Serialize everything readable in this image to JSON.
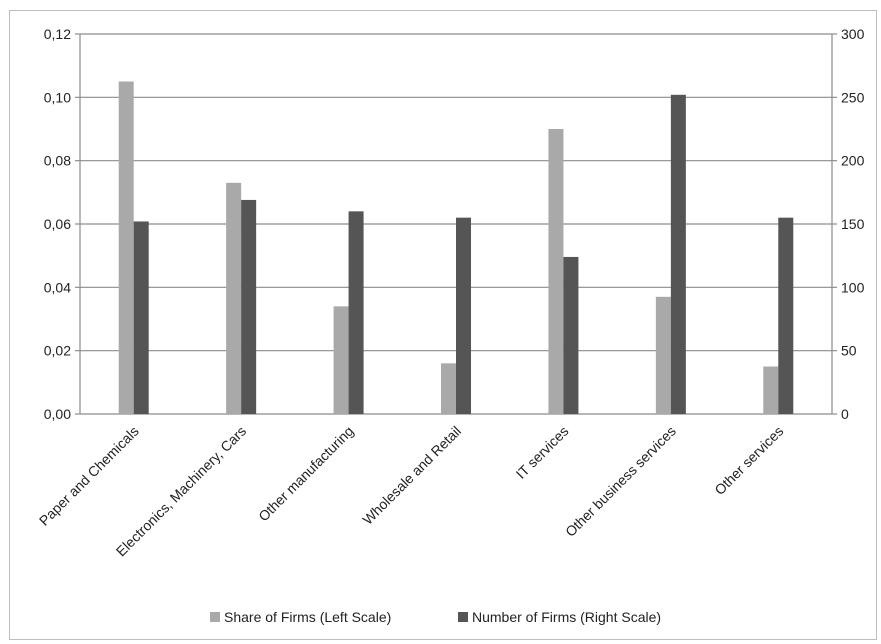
{
  "chart_data": {
    "type": "bar",
    "categories": [
      "Paper and Chemicals",
      "Electronics, Machinery, Cars",
      "Other manufacturing",
      "Wholesale and Retail",
      "IT services",
      "Other business services",
      "Other services"
    ],
    "series": [
      {
        "name": "Share of Firms (Left Scale)",
        "axis": "left",
        "color": "#a9a9a9",
        "values": [
          0.105,
          0.073,
          0.034,
          0.016,
          0.09,
          0.037,
          0.015
        ]
      },
      {
        "name": "Number of Firms (Right Scale)",
        "axis": "right",
        "color": "#555555",
        "values": [
          152,
          169,
          160,
          155,
          124,
          252,
          155
        ]
      }
    ],
    "y_left": {
      "range": [
        0,
        0.12
      ],
      "ticks": [
        0,
        0.02,
        0.04,
        0.06,
        0.08,
        0.1,
        0.12
      ],
      "tick_labels": [
        "0,00",
        "0,02",
        "0,04",
        "0,06",
        "0,08",
        "0,10",
        "0,12"
      ]
    },
    "y_right": {
      "range": [
        0,
        300
      ],
      "ticks": [
        0,
        50,
        100,
        150,
        200,
        250,
        300
      ],
      "tick_labels": [
        "0",
        "50",
        "100",
        "150",
        "200",
        "250",
        "300"
      ]
    },
    "grid": true,
    "legend": "bottom",
    "title": "",
    "xlabel": "",
    "ylabel": ""
  }
}
